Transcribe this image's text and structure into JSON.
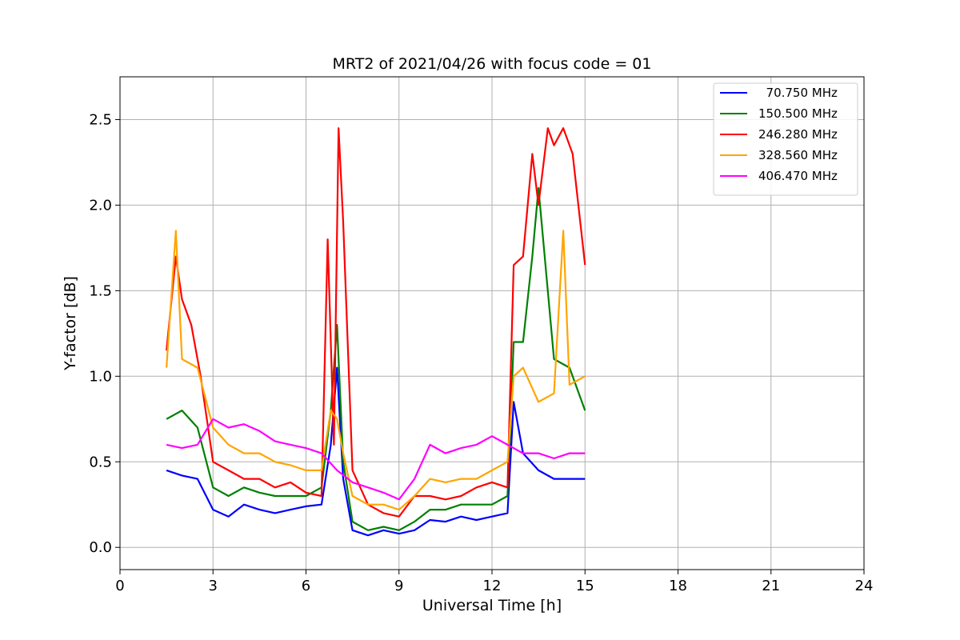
{
  "chart_data": {
    "type": "line",
    "title": "MRT2 of 2021/04/26 with focus code = 01",
    "xlabel": "Universal Time [h]",
    "ylabel": "Y-factor [dB]",
    "xlim": [
      0,
      24
    ],
    "ylim": [
      -0.13,
      2.75
    ],
    "xticks": [
      0,
      3,
      6,
      9,
      12,
      15,
      18,
      21,
      24
    ],
    "xtick_labels": [
      "0",
      "3",
      "6",
      "9",
      "12",
      "15",
      "18",
      "21",
      "24"
    ],
    "yticks": [
      0.0,
      0.5,
      1.0,
      1.5,
      2.0,
      2.5
    ],
    "ytick_labels": [
      "0.0",
      "0.5",
      "1.0",
      "1.5",
      "2.0",
      "2.5"
    ],
    "grid": true,
    "legend_position": "top-right",
    "series": [
      {
        "name": "  70.750 MHz",
        "color": "#0000ff",
        "x": [
          1.5,
          2.0,
          2.5,
          3.0,
          3.5,
          4.0,
          4.5,
          5.0,
          5.5,
          6.0,
          6.5,
          6.8,
          7.0,
          7.2,
          7.5,
          8.0,
          8.5,
          9.0,
          9.5,
          10.0,
          10.5,
          11.0,
          11.5,
          12.0,
          12.5,
          12.7,
          13.0,
          13.5,
          14.0,
          14.5,
          15.0
        ],
        "y": [
          0.45,
          0.42,
          0.4,
          0.22,
          0.18,
          0.25,
          0.22,
          0.2,
          0.22,
          0.24,
          0.25,
          0.6,
          1.05,
          0.4,
          0.1,
          0.07,
          0.1,
          0.08,
          0.1,
          0.16,
          0.15,
          0.18,
          0.16,
          0.18,
          0.2,
          0.85,
          0.55,
          0.45,
          0.4,
          0.4,
          0.4
        ]
      },
      {
        "name": "150.500 MHz",
        "color": "#008000",
        "x": [
          1.5,
          2.0,
          2.5,
          3.0,
          3.5,
          4.0,
          4.5,
          5.0,
          5.5,
          6.0,
          6.5,
          6.8,
          7.0,
          7.2,
          7.5,
          8.0,
          8.5,
          9.0,
          9.5,
          10.0,
          10.5,
          11.0,
          11.5,
          12.0,
          12.5,
          12.7,
          13.0,
          13.3,
          13.5,
          14.0,
          14.5,
          15.0
        ],
        "y": [
          0.75,
          0.8,
          0.7,
          0.35,
          0.3,
          0.35,
          0.32,
          0.3,
          0.3,
          0.3,
          0.35,
          0.8,
          1.3,
          0.5,
          0.15,
          0.1,
          0.12,
          0.1,
          0.15,
          0.22,
          0.22,
          0.25,
          0.25,
          0.25,
          0.3,
          1.2,
          1.2,
          1.7,
          2.1,
          1.1,
          1.05,
          0.8
        ]
      },
      {
        "name": "246.280 MHz",
        "color": "#ff0000",
        "x": [
          1.5,
          1.8,
          2.0,
          2.3,
          2.6,
          3.0,
          3.5,
          4.0,
          4.5,
          5.0,
          5.5,
          6.0,
          6.5,
          6.7,
          6.9,
          7.05,
          7.2,
          7.5,
          8.0,
          8.5,
          9.0,
          9.5,
          10.0,
          10.5,
          11.0,
          11.5,
          12.0,
          12.5,
          12.7,
          13.0,
          13.3,
          13.5,
          13.8,
          14.0,
          14.3,
          14.6,
          15.0
        ],
        "y": [
          1.15,
          1.7,
          1.45,
          1.3,
          1.0,
          0.5,
          0.45,
          0.4,
          0.4,
          0.35,
          0.38,
          0.32,
          0.3,
          1.8,
          0.6,
          2.45,
          1.9,
          0.45,
          0.25,
          0.2,
          0.18,
          0.3,
          0.3,
          0.28,
          0.3,
          0.35,
          0.38,
          0.35,
          1.65,
          1.7,
          2.3,
          2.0,
          2.45,
          2.35,
          2.45,
          2.3,
          1.65
        ]
      },
      {
        "name": "328.560 MHz",
        "color": "#ffa500",
        "x": [
          1.5,
          1.8,
          2.0,
          2.5,
          3.0,
          3.5,
          4.0,
          4.5,
          5.0,
          5.5,
          6.0,
          6.5,
          6.8,
          7.0,
          7.2,
          7.5,
          8.0,
          8.5,
          9.0,
          9.5,
          10.0,
          10.5,
          11.0,
          11.5,
          12.0,
          12.5,
          12.7,
          13.0,
          13.5,
          14.0,
          14.3,
          14.5,
          15.0
        ],
        "y": [
          1.05,
          1.85,
          1.1,
          1.05,
          0.7,
          0.6,
          0.55,
          0.55,
          0.5,
          0.48,
          0.45,
          0.45,
          0.8,
          0.75,
          0.55,
          0.3,
          0.25,
          0.25,
          0.22,
          0.3,
          0.4,
          0.38,
          0.4,
          0.4,
          0.45,
          0.5,
          1.0,
          1.05,
          0.85,
          0.9,
          1.85,
          0.95,
          1.0
        ]
      },
      {
        "name": "406.470 MHz",
        "color": "#ff00ff",
        "x": [
          1.5,
          2.0,
          2.5,
          3.0,
          3.5,
          4.0,
          4.5,
          5.0,
          5.5,
          6.0,
          6.5,
          7.0,
          7.5,
          8.0,
          8.5,
          9.0,
          9.5,
          10.0,
          10.5,
          11.0,
          11.5,
          12.0,
          12.5,
          13.0,
          13.5,
          14.0,
          14.5,
          15.0
        ],
        "y": [
          0.6,
          0.58,
          0.6,
          0.75,
          0.7,
          0.72,
          0.68,
          0.62,
          0.6,
          0.58,
          0.55,
          0.45,
          0.38,
          0.35,
          0.32,
          0.28,
          0.4,
          0.6,
          0.55,
          0.58,
          0.6,
          0.65,
          0.6,
          0.55,
          0.55,
          0.52,
          0.55,
          0.55
        ]
      }
    ]
  }
}
